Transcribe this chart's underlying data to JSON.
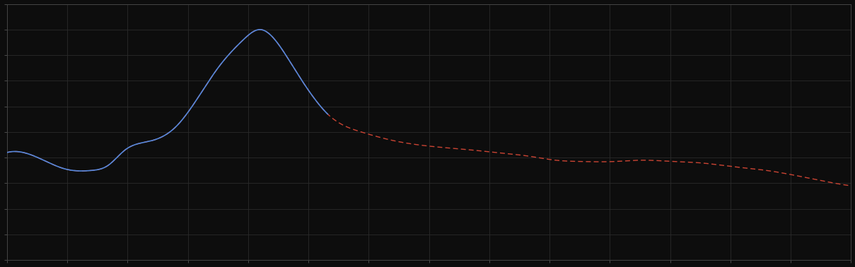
{
  "background_color": "#0d0d0d",
  "plot_bg_color": "#0d0d0d",
  "grid_color": "#2a2a2a",
  "axis_color": "#444444",
  "tick_color": "#666666",
  "blue_line_color": "#5588dd",
  "red_line_color": "#cc4433",
  "figsize": [
    12.09,
    3.78
  ],
  "dpi": 100
}
